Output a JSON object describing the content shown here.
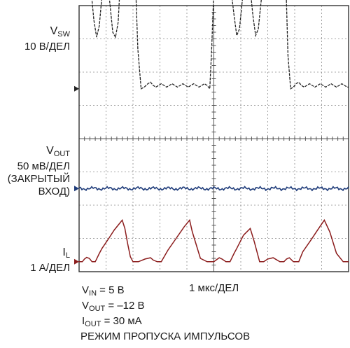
{
  "chart_data": {
    "type": "line",
    "time_base": "1 мкс/ДЕЛ",
    "grid": {
      "divisions_x": 10,
      "divisions_y": 8,
      "visible": true
    },
    "x_range_us": [
      0,
      10
    ],
    "channels": [
      {
        "symbol": "V",
        "subscript": "SW",
        "scale": "10 В/ДЕЛ",
        "color": "#222222",
        "ground_div": 5.5,
        "time_us": [
          0.0,
          0.05,
          0.1,
          0.35,
          0.45,
          0.55,
          0.65,
          0.75,
          0.85,
          0.95,
          1.0,
          1.05,
          1.15,
          1.25,
          1.35,
          1.45,
          1.5,
          1.55,
          1.62,
          2.05,
          2.1,
          2.18,
          2.3,
          2.42,
          2.55,
          2.65,
          2.75,
          2.85,
          2.95,
          3.05,
          3.15,
          3.25,
          3.35,
          3.45,
          3.55,
          3.65,
          3.75,
          3.85,
          3.95,
          4.05,
          4.15,
          4.25,
          4.35,
          4.45,
          4.55,
          4.65,
          4.75,
          4.85,
          4.92,
          5.0,
          5.05,
          5.12,
          5.5,
          5.65,
          5.75,
          5.85,
          5.95,
          6.05,
          6.15,
          6.25,
          6.35,
          6.45,
          6.55,
          6.65,
          6.75,
          6.85,
          6.95,
          7.05,
          7.15,
          7.22,
          7.62,
          7.68,
          7.75,
          7.85,
          7.95,
          8.05,
          8.15,
          8.25,
          8.35,
          8.45,
          8.55,
          8.65,
          8.75,
          8.85,
          8.95,
          9.05,
          9.15,
          9.25,
          9.35,
          9.45,
          9.55,
          9.65,
          9.75,
          9.85,
          9.95,
          10.0
        ],
        "volts": [
          35.0,
          35.0,
          35.2,
          35.0,
          29.0,
          20.5,
          15.5,
          19.0,
          28.0,
          34.5,
          35.0,
          33.0,
          25.0,
          17.0,
          15.5,
          20.0,
          28.0,
          34.0,
          35.0,
          35.0,
          30.0,
          12.0,
          0.0,
          0.5,
          1.5,
          2.0,
          1.0,
          0.5,
          1.0,
          1.5,
          1.0,
          0.5,
          1.0,
          1.5,
          1.0,
          0.5,
          1.0,
          1.5,
          1.0,
          0.5,
          1.0,
          1.5,
          1.0,
          0.5,
          1.0,
          1.5,
          1.0,
          0.0,
          12.0,
          30.0,
          35.0,
          35.2,
          35.0,
          29.0,
          22.0,
          16.0,
          18.0,
          26.0,
          33.5,
          35.0,
          30.0,
          22.0,
          16.0,
          18.0,
          26.0,
          33.5,
          35.0,
          35.0,
          35.2,
          35.0,
          35.0,
          30.0,
          10.0,
          0.0,
          0.5,
          1.5,
          2.0,
          1.0,
          0.5,
          1.0,
          1.5,
          1.0,
          0.5,
          1.0,
          1.5,
          1.0,
          0.5,
          1.0,
          1.5,
          1.0,
          0.5,
          1.0,
          1.5,
          1.0,
          0.5,
          0.5
        ]
      },
      {
        "symbol": "V",
        "subscript": "OUT",
        "scale": "50 мВ/ДЕЛ",
        "note": "(ЗАКРЫТЫЙ",
        "note2": "ВХОД)",
        "color": "#1f3c7a",
        "ground_div": 2.5,
        "ripple_mv": 3
      },
      {
        "symbol": "I",
        "subscript": "L",
        "scale": "1 А/ДЕЛ",
        "color": "#8b1c1c",
        "ground_div": 0.3,
        "time_us": [
          0.0,
          0.12,
          0.2,
          0.28,
          0.38,
          0.48,
          0.6,
          0.75,
          0.85,
          1.1,
          1.3,
          1.6,
          1.7,
          1.8,
          1.9,
          2.0,
          2.2,
          2.45,
          2.65,
          2.75,
          2.9,
          3.05,
          3.3,
          3.6,
          3.9,
          4.1,
          4.2,
          4.5,
          4.75,
          5.0,
          5.1,
          5.2,
          5.3,
          5.45,
          5.6,
          5.75,
          5.85,
          6.1,
          6.35,
          6.5,
          6.7,
          6.85,
          7.0,
          7.2,
          7.45,
          7.6,
          7.7,
          7.8,
          7.95,
          8.15,
          8.3,
          8.6,
          8.85,
          9.1,
          9.3,
          9.55,
          9.8,
          10.0
        ],
        "amps": [
          0.0,
          0.0,
          0.08,
          0.13,
          0.1,
          0.0,
          0.0,
          0.25,
          0.4,
          0.7,
          0.95,
          1.25,
          1.0,
          0.55,
          0.15,
          0.0,
          0.0,
          0.08,
          0.12,
          0.05,
          0.0,
          0.0,
          0.35,
          0.7,
          1.05,
          1.25,
          0.9,
          0.1,
          0.0,
          0.0,
          0.06,
          0.12,
          0.08,
          0.0,
          0.0,
          0.25,
          0.4,
          0.8,
          1.0,
          0.6,
          0.0,
          0.0,
          0.08,
          0.12,
          0.0,
          0.0,
          0.08,
          0.12,
          0.0,
          0.0,
          0.3,
          0.65,
          0.95,
          1.25,
          0.9,
          0.25,
          0.0,
          0.0
        ]
      }
    ]
  },
  "conditions": [
    {
      "main": "V",
      "sub": "IN",
      "rest": " = 5 В"
    },
    {
      "main": "V",
      "sub": "OUT",
      "rest": " = –12 В"
    },
    {
      "main": "I",
      "sub": "OUT",
      "rest": " = 30 мА"
    }
  ],
  "mode_text": "РЕЖИМ ПРОПУСКА ИМПУЛЬСОВ"
}
